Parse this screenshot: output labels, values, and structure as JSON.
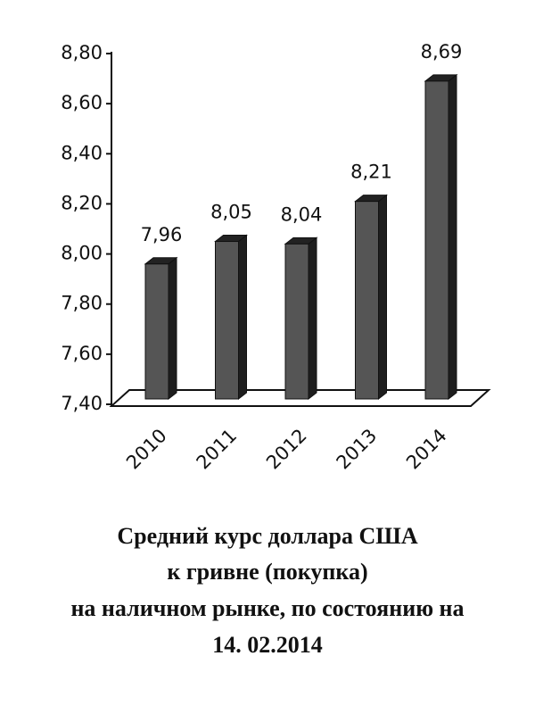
{
  "chart_data": {
    "type": "bar",
    "title": [
      "Средний курс доллара США",
      "к гривне (покупка)",
      "на наличном рынке, по состоянию на",
      "14. 02.2014"
    ],
    "categories": [
      "2010",
      "2011",
      "2012",
      "2013",
      "2014"
    ],
    "values": [
      7.96,
      8.05,
      8.04,
      8.21,
      8.69
    ],
    "value_labels": [
      "7,96",
      "8,05",
      "8,04",
      "8,21",
      "8,69"
    ],
    "color": "#555555",
    "ylim": [
      7.4,
      8.8
    ],
    "yticks": [
      {
        "value": 7.4,
        "label": "7,40"
      },
      {
        "value": 7.6,
        "label": "7,60"
      },
      {
        "value": 7.8,
        "label": "7,80"
      },
      {
        "value": 8.0,
        "label": "8,00"
      },
      {
        "value": 8.2,
        "label": "8,20"
      },
      {
        "value": 8.4,
        "label": "8,40"
      },
      {
        "value": 8.6,
        "label": "8,60"
      },
      {
        "value": 8.8,
        "label": "8,80"
      }
    ],
    "grid": false
  }
}
